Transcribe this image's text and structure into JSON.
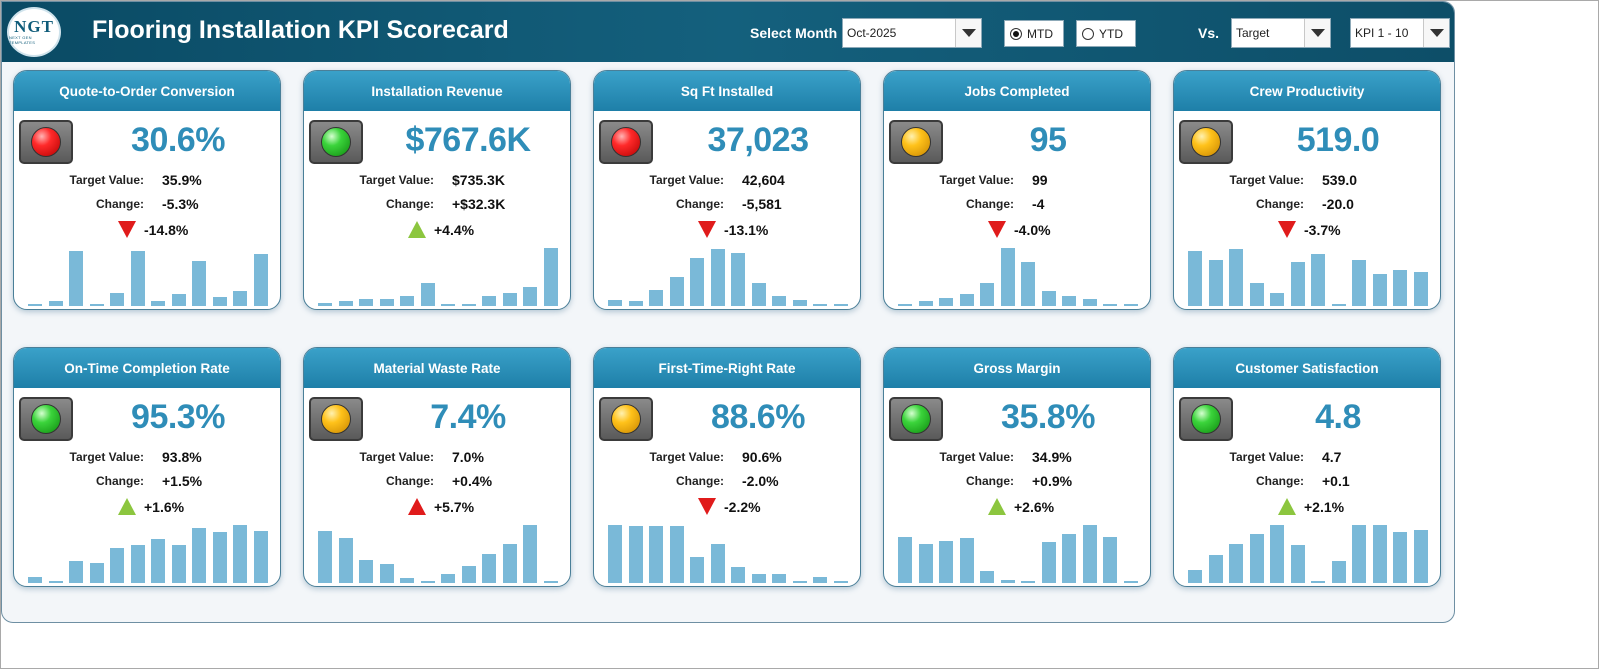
{
  "header": {
    "logo_text": "NGT",
    "logo_sub": "NEXT GEN TEMPLATES",
    "title": "Flooring Installation KPI Scorecard",
    "select_month_label": "Select Month",
    "month_value": "Oct-2025",
    "mtd_label": "MTD",
    "ytd_label": "YTD",
    "mtd_selected": true,
    "vs_label": "Vs.",
    "compare_value": "Target",
    "kpi_range_value": "KPI 1 - 10"
  },
  "labels": {
    "target": "Target Value:",
    "change": "Change:"
  },
  "colors": {
    "header_bg": "#0d4e68",
    "card_header": "#2a8fb9",
    "value_text": "#2f8db8",
    "bar": "#7ab9d8",
    "down": "#e01b1b",
    "up": "#8cc63f"
  },
  "kpis": [
    {
      "name": "Quote-to-Order Conversion",
      "status": "red",
      "value": "30.6%",
      "target": "35.9%",
      "change": "-5.3%",
      "pct_change": "-14.8%",
      "arrow": "down",
      "bars": [
        0,
        0.08,
        0.95,
        0.04,
        0.22,
        0.95,
        0.08,
        0.2,
        0.78,
        0.15,
        0.25,
        0.9
      ]
    },
    {
      "name": "Installation Revenue",
      "status": "green",
      "value": "$767.6K",
      "target": "$735.3K",
      "change": "+$32.3K",
      "pct_change": "+4.4%",
      "arrow": "up-green",
      "bars": [
        0.05,
        0.08,
        0.12,
        0.12,
        0.18,
        0.4,
        0.02,
        0.02,
        0.18,
        0.22,
        0.33,
        1.0
      ]
    },
    {
      "name": "Sq Ft Installed",
      "status": "red",
      "value": "37,023",
      "target": "42,604",
      "change": "-5,581",
      "pct_change": "-13.1%",
      "arrow": "down",
      "bars": [
        0.1,
        0.08,
        0.28,
        0.5,
        0.82,
        0.98,
        0.92,
        0.4,
        0.18,
        0.1,
        0.03,
        0.02
      ]
    },
    {
      "name": "Jobs Completed",
      "status": "amber",
      "value": "95",
      "target": "99",
      "change": "-4",
      "pct_change": "-4.0%",
      "arrow": "down",
      "bars": [
        0.04,
        0.08,
        0.14,
        0.2,
        0.4,
        1.0,
        0.75,
        0.25,
        0.18,
        0.12,
        0.04,
        0.02
      ]
    },
    {
      "name": "Crew Productivity",
      "status": "amber",
      "value": "519.0",
      "target": "539.0",
      "change": "-20.0",
      "pct_change": "-3.7%",
      "arrow": "down",
      "bars": [
        0.95,
        0.8,
        0.98,
        0.4,
        0.22,
        0.75,
        0.9,
        0.02,
        0.8,
        0.55,
        0.62,
        0.58
      ]
    },
    {
      "name": "On-Time Completion Rate",
      "status": "green",
      "value": "95.3%",
      "target": "93.8%",
      "change": "+1.5%",
      "pct_change": "+1.6%",
      "arrow": "up-green",
      "bars": [
        0.1,
        0.02,
        0.38,
        0.35,
        0.6,
        0.65,
        0.75,
        0.65,
        0.95,
        0.88,
        1.0,
        0.9
      ]
    },
    {
      "name": "Material Waste Rate",
      "status": "amber",
      "value": "7.4%",
      "target": "7.0%",
      "change": "+0.4%",
      "pct_change": "+5.7%",
      "arrow": "up-red",
      "bars": [
        0.9,
        0.78,
        0.4,
        0.33,
        0.08,
        0.03,
        0.15,
        0.3,
        0.5,
        0.68,
        1.0,
        0.02
      ]
    },
    {
      "name": "First-Time-Right Rate",
      "status": "amber",
      "value": "88.6%",
      "target": "90.6%",
      "change": "-2.0%",
      "pct_change": "-2.2%",
      "arrow": "down",
      "bars": [
        1.0,
        0.98,
        0.98,
        0.98,
        0.45,
        0.68,
        0.28,
        0.15,
        0.15,
        0.03,
        0.1,
        0.02
      ]
    },
    {
      "name": "Gross Margin",
      "status": "green",
      "value": "35.8%",
      "target": "34.9%",
      "change": "+0.9%",
      "pct_change": "+2.6%",
      "arrow": "up-green",
      "bars": [
        0.8,
        0.68,
        0.72,
        0.78,
        0.2,
        0.05,
        0.02,
        0.7,
        0.85,
        1.0,
        0.8,
        0.02
      ]
    },
    {
      "name": "Customer Satisfaction",
      "status": "green",
      "value": "4.8",
      "target": "4.7",
      "change": "+0.1",
      "pct_change": "+2.1%",
      "arrow": "up-green",
      "bars": [
        0.22,
        0.48,
        0.68,
        0.85,
        1.0,
        0.65,
        0.02,
        0.38,
        1.0,
        1.0,
        0.88,
        0.92
      ]
    }
  ]
}
